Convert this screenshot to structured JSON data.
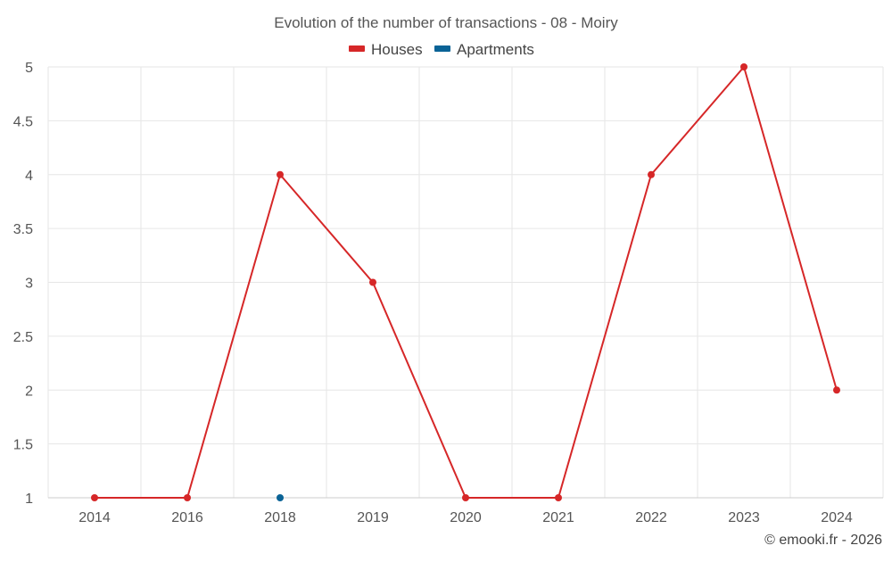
{
  "chart_data": {
    "type": "line",
    "title": "Evolution of the number of transactions - 08 - Moiry",
    "xlabel": "",
    "ylabel": "",
    "categories": [
      "2014",
      "2016",
      "2018",
      "2019",
      "2020",
      "2021",
      "2022",
      "2023",
      "2024"
    ],
    "ylim": [
      1,
      5
    ],
    "yticks": [
      "1",
      "1.5",
      "2",
      "2.5",
      "3",
      "3.5",
      "4",
      "4.5",
      "5"
    ],
    "grid": true,
    "legend_position": "top-center",
    "series": [
      {
        "name": "Houses",
        "color": "#d62728",
        "values": [
          1,
          1,
          4,
          3,
          1,
          1,
          4,
          5,
          2
        ]
      },
      {
        "name": "Apartments",
        "color": "#0a6396",
        "values": [
          null,
          null,
          1,
          null,
          null,
          null,
          null,
          null,
          null
        ]
      }
    ]
  },
  "credit": "© emooki.fr - 2026"
}
